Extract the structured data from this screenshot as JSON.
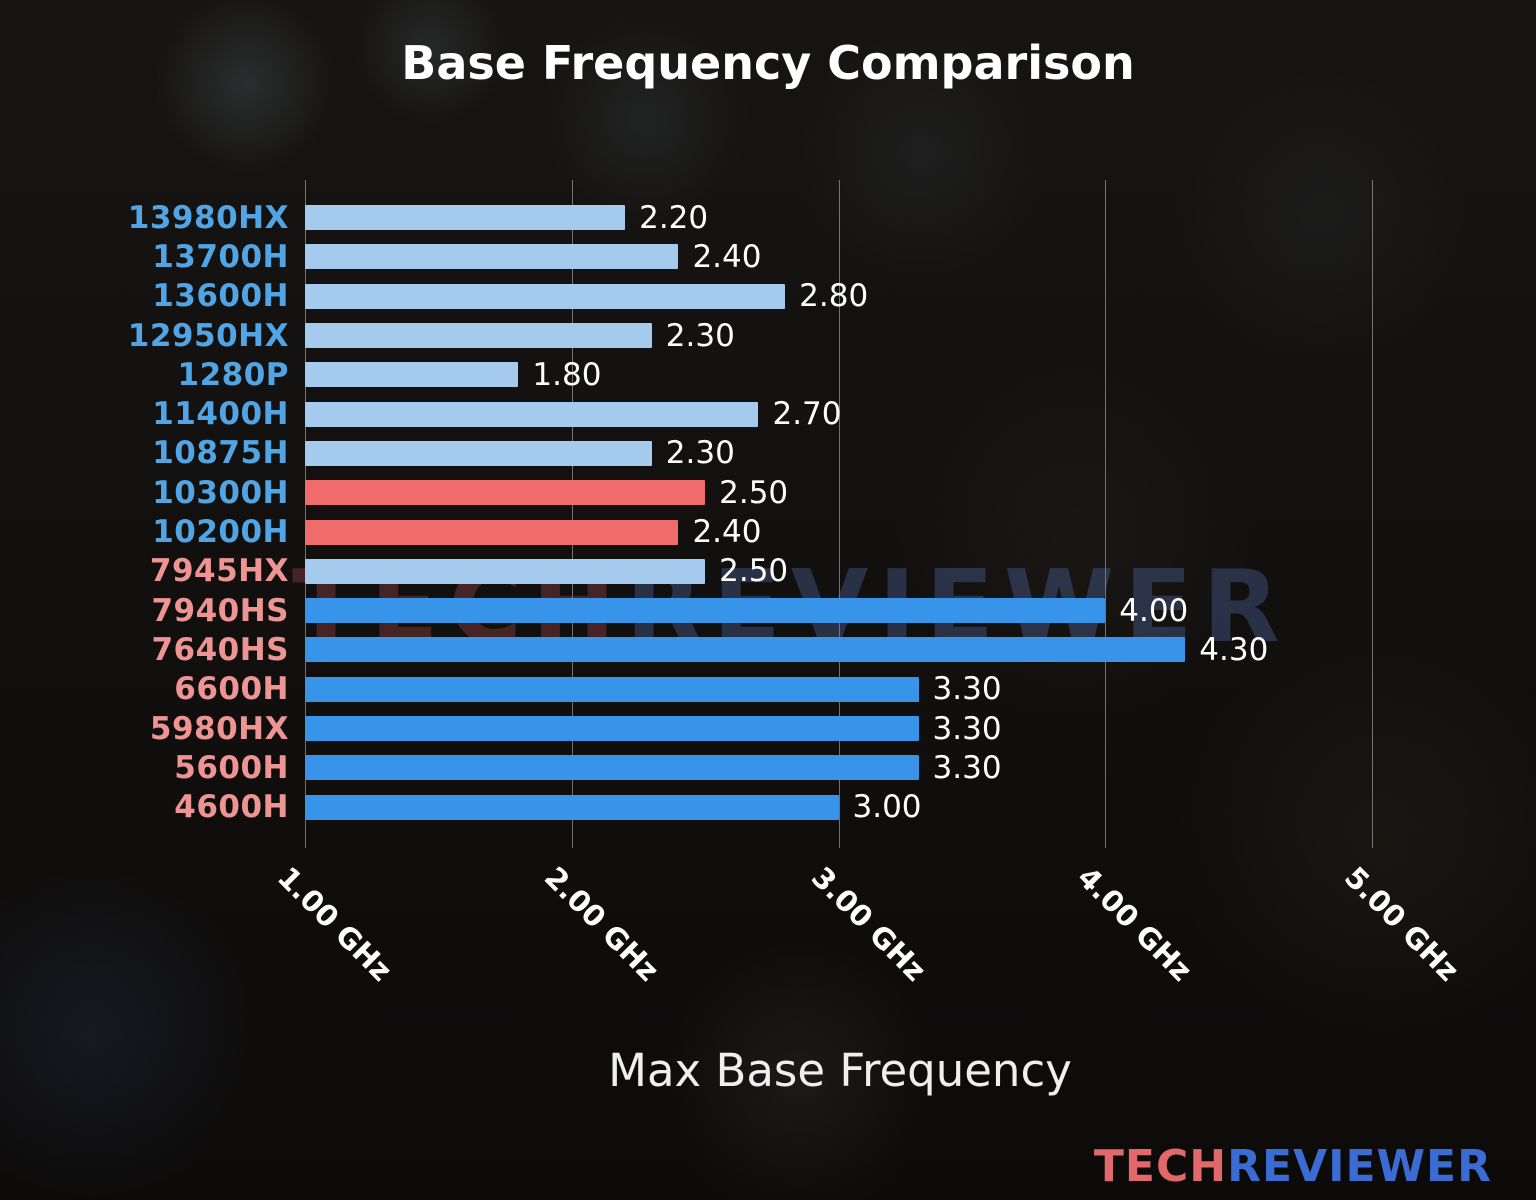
{
  "title": "Base Frequency Comparison",
  "xlabel": "Max Base Frequency",
  "watermark": {
    "part1": "TECH",
    "part2": "REVIEWER"
  },
  "logo": {
    "part1": "TECH",
    "part2": "REVIEWER"
  },
  "colors": {
    "intel_label": "#52a5e5",
    "amd_label": "#ee9593",
    "bar_light": "#a4cbee",
    "bar_bright": "#3794e8",
    "bar_salmon": "#f06b6b",
    "value_text": "#ffffff",
    "grid": "#c3c3c3"
  },
  "chart_data": {
    "type": "bar",
    "orientation": "horizontal",
    "title": "Base Frequency Comparison",
    "xlabel": "Max Base Frequency",
    "x_unit": "GHz",
    "xlim": [
      1.0,
      5.2
    ],
    "grid": true,
    "x_tick_values": [
      1,
      2,
      3,
      4,
      5
    ],
    "x_ticks": [
      "1.00 GHz",
      "2.00 GHz",
      "3.00 GHz",
      "4.00 GHz",
      "5.00 GHz"
    ],
    "rows": [
      {
        "label": "13980HX",
        "value": 2.2,
        "display": "2.20",
        "group": "intel",
        "bar_style": "light"
      },
      {
        "label": "13700H",
        "value": 2.4,
        "display": "2.40",
        "group": "intel",
        "bar_style": "light"
      },
      {
        "label": "13600H",
        "value": 2.8,
        "display": "2.80",
        "group": "intel",
        "bar_style": "light"
      },
      {
        "label": "12950HX",
        "value": 2.3,
        "display": "2.30",
        "group": "intel",
        "bar_style": "light"
      },
      {
        "label": "1280P",
        "value": 1.8,
        "display": "1.80",
        "group": "intel",
        "bar_style": "light"
      },
      {
        "label": "11400H",
        "value": 2.7,
        "display": "2.70",
        "group": "intel",
        "bar_style": "light"
      },
      {
        "label": "10875H",
        "value": 2.3,
        "display": "2.30",
        "group": "intel",
        "bar_style": "light"
      },
      {
        "label": "10300H",
        "value": 2.5,
        "display": "2.50",
        "group": "intel",
        "bar_style": "salmon"
      },
      {
        "label": "10200H",
        "value": 2.4,
        "display": "2.40",
        "group": "intel",
        "bar_style": "salmon"
      },
      {
        "label": "7945HX",
        "value": 2.5,
        "display": "2.50",
        "group": "amd",
        "bar_style": "light"
      },
      {
        "label": "7940HS",
        "value": 4.0,
        "display": "4.00",
        "group": "amd",
        "bar_style": "bright"
      },
      {
        "label": "7640HS",
        "value": 4.3,
        "display": "4.30",
        "group": "amd",
        "bar_style": "bright"
      },
      {
        "label": "6600H",
        "value": 3.3,
        "display": "3.30",
        "group": "amd",
        "bar_style": "bright"
      },
      {
        "label": "5980HX",
        "value": 3.3,
        "display": "3.30",
        "group": "amd",
        "bar_style": "bright"
      },
      {
        "label": "5600H",
        "value": 3.3,
        "display": "3.30",
        "group": "amd",
        "bar_style": "bright"
      },
      {
        "label": "4600H",
        "value": 3.0,
        "display": "3.00",
        "group": "amd",
        "bar_style": "bright"
      }
    ]
  }
}
